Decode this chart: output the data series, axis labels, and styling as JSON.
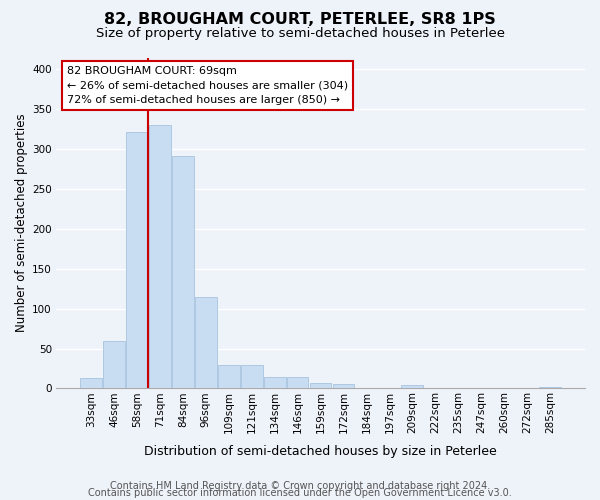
{
  "title1": "82, BROUGHAM COURT, PETERLEE, SR8 1PS",
  "title2": "Size of property relative to semi-detached houses in Peterlee",
  "xlabel": "Distribution of semi-detached houses by size in Peterlee",
  "ylabel": "Number of semi-detached properties",
  "categories": [
    "33sqm",
    "46sqm",
    "58sqm",
    "71sqm",
    "84sqm",
    "96sqm",
    "109sqm",
    "121sqm",
    "134sqm",
    "146sqm",
    "159sqm",
    "172sqm",
    "184sqm",
    "197sqm",
    "209sqm",
    "222sqm",
    "235sqm",
    "247sqm",
    "260sqm",
    "272sqm",
    "285sqm"
  ],
  "values": [
    13,
    60,
    322,
    330,
    291,
    115,
    30,
    30,
    15,
    15,
    7,
    6,
    1,
    0,
    4,
    0,
    0,
    0,
    0,
    0,
    2
  ],
  "bar_color": "#c9ddf2",
  "bar_edge_color": "#a8c4e0",
  "vline_x": 2.5,
  "annotation_line1": "82 BROUGHAM COURT: 69sqm",
  "annotation_line2": "← 26% of semi-detached houses are smaller (304)",
  "annotation_line3": "72% of semi-detached houses are larger (850) →",
  "box_facecolor": "#ffffff",
  "box_edgecolor": "#cc0000",
  "vline_color": "#cc0000",
  "ylim": [
    0,
    415
  ],
  "yticks": [
    0,
    50,
    100,
    150,
    200,
    250,
    300,
    350,
    400
  ],
  "footer1": "Contains HM Land Registry data © Crown copyright and database right 2024.",
  "footer2": "Contains public sector information licensed under the Open Government Licence v3.0.",
  "bg_color": "#eef2f9",
  "grid_color": "#ffffff",
  "title1_fontsize": 11.5,
  "title2_fontsize": 9.5,
  "ylabel_fontsize": 8.5,
  "xlabel_fontsize": 9,
  "tick_fontsize": 7.5,
  "annot_fontsize": 8,
  "footer_fontsize": 7
}
